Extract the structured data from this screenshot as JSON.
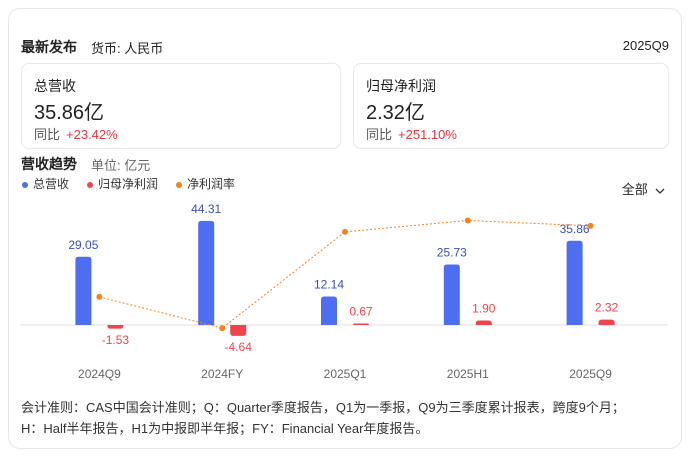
{
  "header": {
    "title": "最新发布",
    "currency": "货币: 人民币",
    "period": "2025Q9"
  },
  "metrics": [
    {
      "label": "总营收",
      "value": "35.86亿",
      "change_label": "同比",
      "change": "+23.42%"
    },
    {
      "label": "归母净利润",
      "value": "2.32亿",
      "change_label": "同比",
      "change": "+251.10%"
    }
  ],
  "chart_data": {
    "type": "bar",
    "title": "营收趋势",
    "unit": "单位: 亿元",
    "filter": "全部",
    "categories": [
      "2024Q9",
      "2024FY",
      "2025Q1",
      "2025H1",
      "2025Q9"
    ],
    "series": [
      {
        "name": "总营收",
        "color": "#4e6ef2",
        "values": [
          29.05,
          44.31,
          12.14,
          25.73,
          35.86
        ]
      },
      {
        "name": "归母净利润",
        "color": "#f0444c",
        "values": [
          -1.53,
          -4.64,
          0.67,
          1.9,
          2.32
        ],
        "value_labels": [
          "-1.53",
          "-4.64",
          "0.67",
          "1.90",
          "2.32"
        ]
      },
      {
        "name": "净利润率",
        "color": "#f5811f",
        "type": "line",
        "axis": "y2",
        "values": [
          -5.3,
          -10.5,
          5.5,
          7.4,
          6.5
        ]
      }
    ],
    "ylim": [
      -8.5,
      53.2
    ],
    "y2lim": [
      -13.3,
      10.8
    ]
  },
  "notes": [
    "会计准则：CAS中国会计准则；Q：Quarter季度报告，Q1为一季报，Q9为三季度累计报表，跨度9个月；",
    "H：Half半年报告，H1为中报即半年报；FY：Financial Year年度报告。"
  ]
}
